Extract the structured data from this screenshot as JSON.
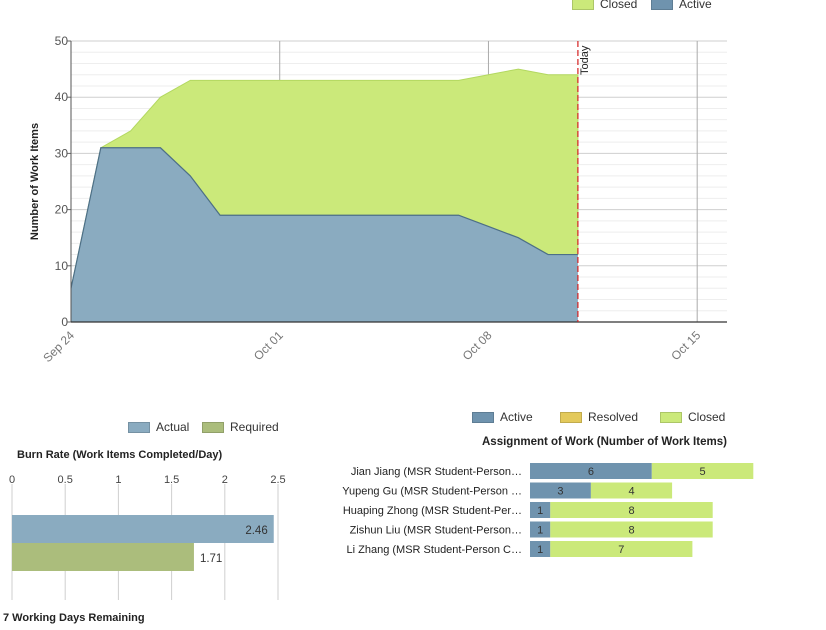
{
  "chart_data": [
    {
      "type": "area",
      "ylabel": "Number of Work Items",
      "ylim": [
        0,
        50
      ],
      "y_ticks": [
        "0",
        "10",
        "20",
        "30",
        "40",
        "50"
      ],
      "x_tick_labels": [
        "Sep 24",
        "Oct 01",
        "Oct 08",
        "Oct 15"
      ],
      "xlim": [
        "2012-09-24",
        "2012-10-16"
      ],
      "today_label": "Today",
      "today_date": "2012-10-11",
      "stacked": true,
      "series": [
        {
          "name": "Active",
          "color": "#8aabc0",
          "x": [
            "2012-09-24",
            "2012-09-25",
            "2012-09-26",
            "2012-09-27",
            "2012-09-28",
            "2012-09-29",
            "2012-09-30",
            "2012-10-01",
            "2012-10-02",
            "2012-10-03",
            "2012-10-04",
            "2012-10-05",
            "2012-10-06",
            "2012-10-07",
            "2012-10-08",
            "2012-10-09",
            "2012-10-10",
            "2012-10-11"
          ],
          "values": [
            6,
            31,
            31,
            31,
            26,
            19,
            19,
            19,
            19,
            19,
            19,
            19,
            19,
            19,
            17,
            15,
            12,
            12
          ]
        },
        {
          "name": "Closed",
          "color": "#cbe97a",
          "x": [
            "2012-09-24",
            "2012-09-25",
            "2012-09-26",
            "2012-09-27",
            "2012-09-28",
            "2012-09-29",
            "2012-09-30",
            "2012-10-01",
            "2012-10-02",
            "2012-10-03",
            "2012-10-04",
            "2012-10-05",
            "2012-10-06",
            "2012-10-07",
            "2012-10-08",
            "2012-10-09",
            "2012-10-10",
            "2012-10-11"
          ],
          "values": [
            0,
            0,
            3,
            9,
            17,
            24,
            24,
            24,
            24,
            24,
            24,
            24,
            24,
            24,
            27,
            30,
            32,
            32
          ]
        }
      ],
      "legend": [
        {
          "label": "Closed",
          "color": "#cbe97a"
        },
        {
          "label": "Active",
          "color": "#6f93ae"
        }
      ]
    },
    {
      "type": "bar",
      "orientation": "horizontal",
      "title": "Burn Rate (Work Items Completed/Day)",
      "xlim": [
        0,
        2.5
      ],
      "x_ticks": [
        "0",
        "0.5",
        "1",
        "1.5",
        "2",
        "2.5"
      ],
      "categories": [
        "Actual",
        "Required"
      ],
      "values": [
        2.46,
        1.71
      ],
      "value_labels": [
        "2.46",
        "1.71"
      ],
      "colors": [
        "#8aabc0",
        "#abbd7c"
      ],
      "legend": [
        {
          "label": "Actual",
          "color": "#8aabc0"
        },
        {
          "label": "Required",
          "color": "#abbd7c"
        }
      ]
    },
    {
      "type": "bar",
      "orientation": "horizontal",
      "stacked": true,
      "title": "Assignment of Work (Number of Work Items)",
      "categories": [
        "Jian Jiang (MSR Student-Person…",
        "Yupeng Gu (MSR Student-Person …",
        "Huaping Zhong (MSR Student-Per…",
        "Zishun Liu (MSR Student-Person…",
        "Li Zhang (MSR Student-Person C…"
      ],
      "series": [
        {
          "name": "Active",
          "color": "#6f93ae",
          "values": [
            6,
            3,
            1,
            1,
            1
          ]
        },
        {
          "name": "Resolved",
          "color": "#e3c95b",
          "values": [
            0,
            0,
            0,
            0,
            0
          ]
        },
        {
          "name": "Closed",
          "color": "#cbe97a",
          "values": [
            5,
            4,
            8,
            8,
            7
          ]
        }
      ]
    }
  ],
  "footer": {
    "days_remaining": "7 Working Days Remaining"
  }
}
